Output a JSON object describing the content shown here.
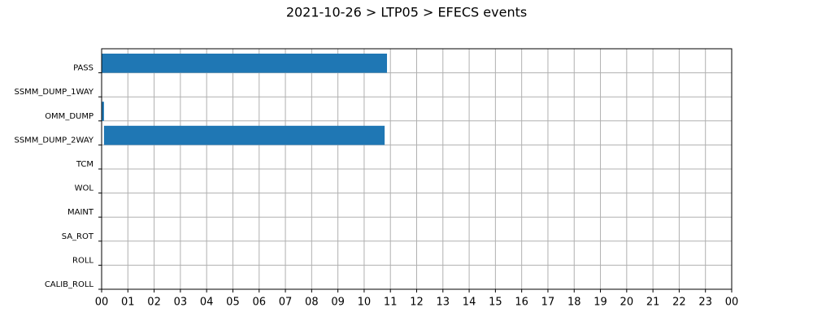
{
  "chart_data": {
    "type": "timeline",
    "title": "2021-10-26 > LTP05 > EFECS events",
    "categories": [
      "PASS",
      "SSMM_DUMP_1WAY",
      "OMM_DUMP",
      "SSMM_DUMP_2WAY",
      "TCM",
      "WOL",
      "MAINT",
      "SA_ROT",
      "ROLL",
      "CALIB_ROLL"
    ],
    "intervals": [
      [
        [
          0,
          10.87
        ]
      ],
      [],
      [
        [
          0,
          0.09
        ]
      ],
      [
        [
          0.09,
          10.78
        ]
      ],
      [],
      [],
      [],
      [],
      [],
      []
    ],
    "color": "#1f77b4",
    "xlim": [
      0,
      24
    ],
    "xticks": [
      {
        "value": 0,
        "label": "00"
      },
      {
        "value": 1,
        "label": "01"
      },
      {
        "value": 2,
        "label": "02"
      },
      {
        "value": 3,
        "label": "03"
      },
      {
        "value": 4,
        "label": "04"
      },
      {
        "value": 5,
        "label": "05"
      },
      {
        "value": 6,
        "label": "06"
      },
      {
        "value": 7,
        "label": "07"
      },
      {
        "value": 8,
        "label": "08"
      },
      {
        "value": 9,
        "label": "09"
      },
      {
        "value": 10,
        "label": "10"
      },
      {
        "value": 11,
        "label": "11"
      },
      {
        "value": 12,
        "label": "12"
      },
      {
        "value": 13,
        "label": "13"
      },
      {
        "value": 14,
        "label": "14"
      },
      {
        "value": 15,
        "label": "15"
      },
      {
        "value": 16,
        "label": "16"
      },
      {
        "value": 17,
        "label": "17"
      },
      {
        "value": 18,
        "label": "18"
      },
      {
        "value": 19,
        "label": "19"
      },
      {
        "value": 20,
        "label": "20"
      },
      {
        "value": 21,
        "label": "21"
      },
      {
        "value": 22,
        "label": "22"
      },
      {
        "value": 23,
        "label": "23"
      },
      {
        "value": 24,
        "label": "00"
      }
    ],
    "grid": true
  }
}
